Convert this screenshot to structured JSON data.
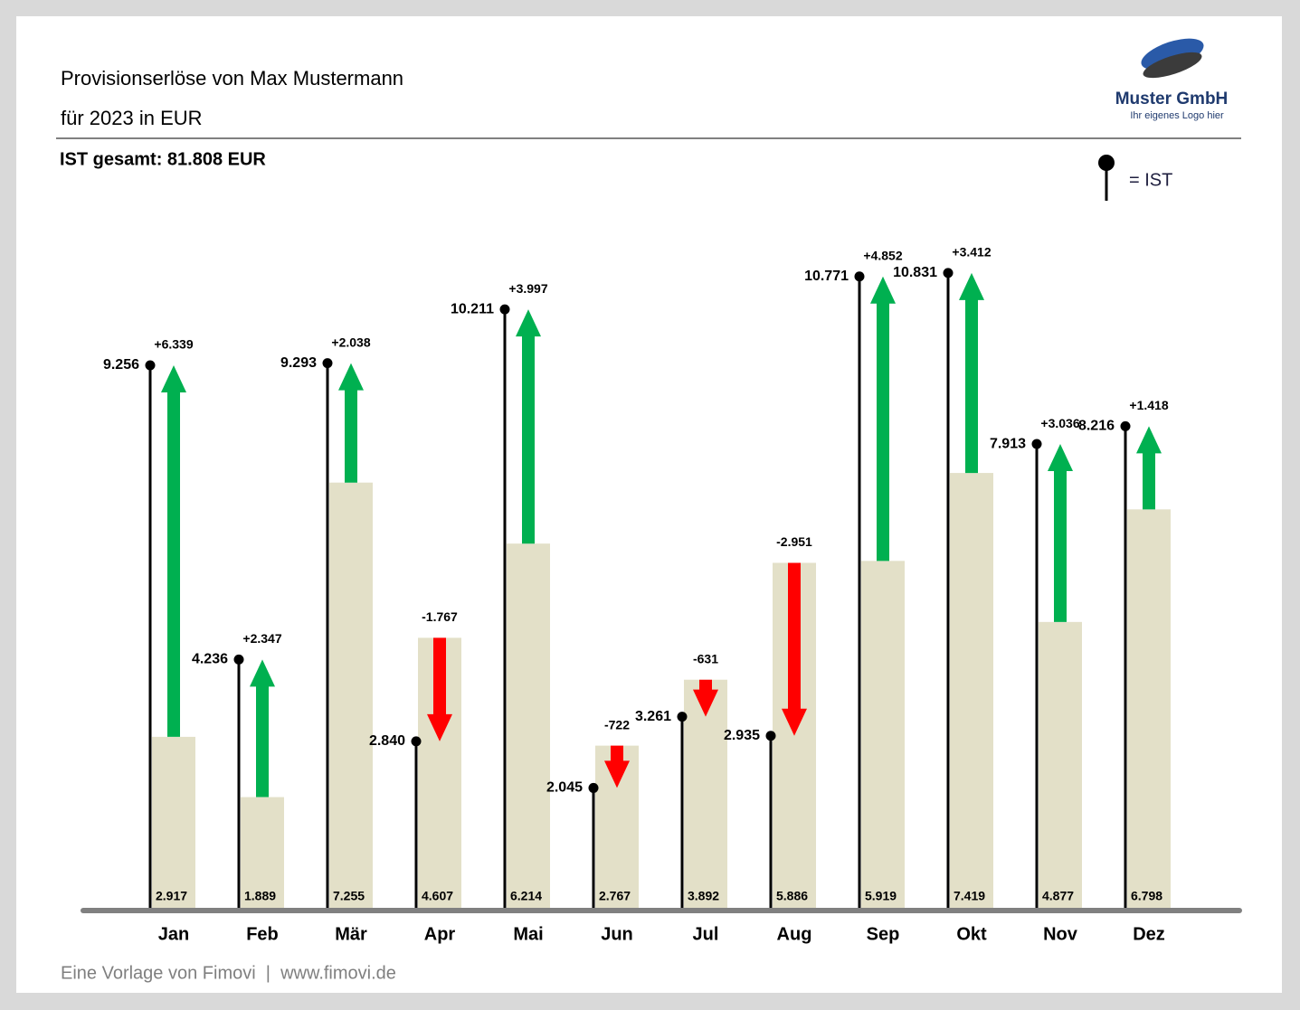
{
  "chart_data": {
    "type": "lollipop",
    "title": "Provisionserlöse von Max Mustermann",
    "subtitle": "für 2023 in EUR",
    "total_label": "IST gesamt: 81.808 EUR",
    "footer": "Eine Vorlage von Fimovi  |  www.fimovi.de",
    "logo": {
      "name": "Muster GmbH",
      "tagline": "Ihr eigenes Logo hier"
    },
    "legend_label": "= IST",
    "categories": [
      "Jan",
      "Feb",
      "Mär",
      "Apr",
      "Mai",
      "Jun",
      "Jul",
      "Aug",
      "Sep",
      "Okt",
      "Nov",
      "Dez"
    ],
    "series": [
      {
        "name": "IST",
        "color": "#000000",
        "values": [
          9256,
          4236,
          9293,
          2840,
          10211,
          2045,
          3261,
          2935,
          10771,
          10831,
          7913,
          8216
        ],
        "value_labels": [
          "9.256",
          "4.236",
          "9.293",
          "2.840",
          "10.211",
          "2.045",
          "3.261",
          "2.935",
          "10.771",
          "10.831",
          "7.913",
          "8.216"
        ]
      },
      {
        "color": "#e3e0c8",
        "values": [
          2917,
          1889,
          7255,
          4607,
          6214,
          2767,
          3892,
          5886,
          5919,
          7419,
          4877,
          6798
        ],
        "value_labels": [
          "2.917",
          "1.889",
          "7.255",
          "4.607",
          "6.214",
          "2.767",
          "3.892",
          "5.886",
          "5.919",
          "7.419",
          "4.877",
          "6.798"
        ]
      }
    ],
    "deltas": {
      "positive_color": "#00b050",
      "negative_color": "#ff0000",
      "values": [
        6339,
        2347,
        2038,
        -1767,
        3997,
        -722,
        -631,
        -2951,
        4852,
        3412,
        3036,
        1418
      ],
      "value_labels": [
        "+6.339",
        "+2.347",
        "+2.038",
        "-1.767",
        "+3.997",
        "-722",
        "-631",
        "-2.951",
        "+4.852",
        "+3.412",
        "+3.036",
        "+1.418"
      ]
    }
  }
}
